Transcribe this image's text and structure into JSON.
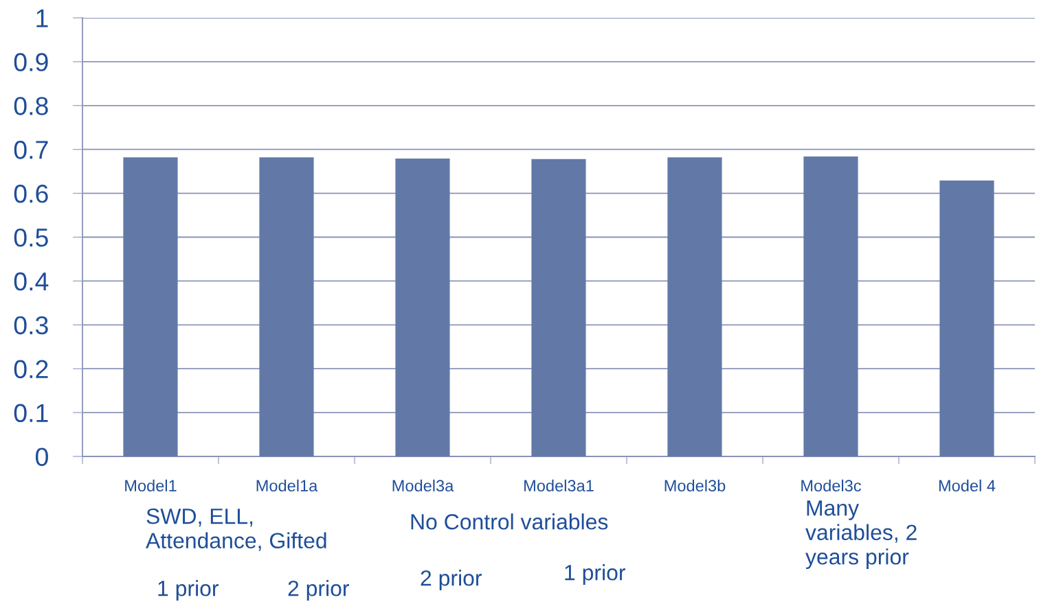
{
  "chart_data": {
    "type": "bar",
    "categories": [
      "Model1",
      "Model1a",
      "Model3a",
      "Model3a1",
      "Model3b",
      "Model3c",
      "Model 4"
    ],
    "values": [
      0.682,
      0.682,
      0.679,
      0.678,
      0.682,
      0.684,
      0.629
    ],
    "color": "#6279a8",
    "ylim": [
      0,
      1
    ],
    "yticks": [
      0,
      0.1,
      0.2,
      0.3,
      0.4,
      0.5,
      0.6,
      0.7,
      0.8,
      0.9,
      1
    ],
    "grid": "y",
    "annotations": [
      "SWD, ELL,\nAttendance, Gifted",
      "1 prior",
      "2 prior",
      "No Control variables",
      "2 prior",
      "1 prior",
      "Many\nvariables, 2\nyears prior"
    ]
  }
}
